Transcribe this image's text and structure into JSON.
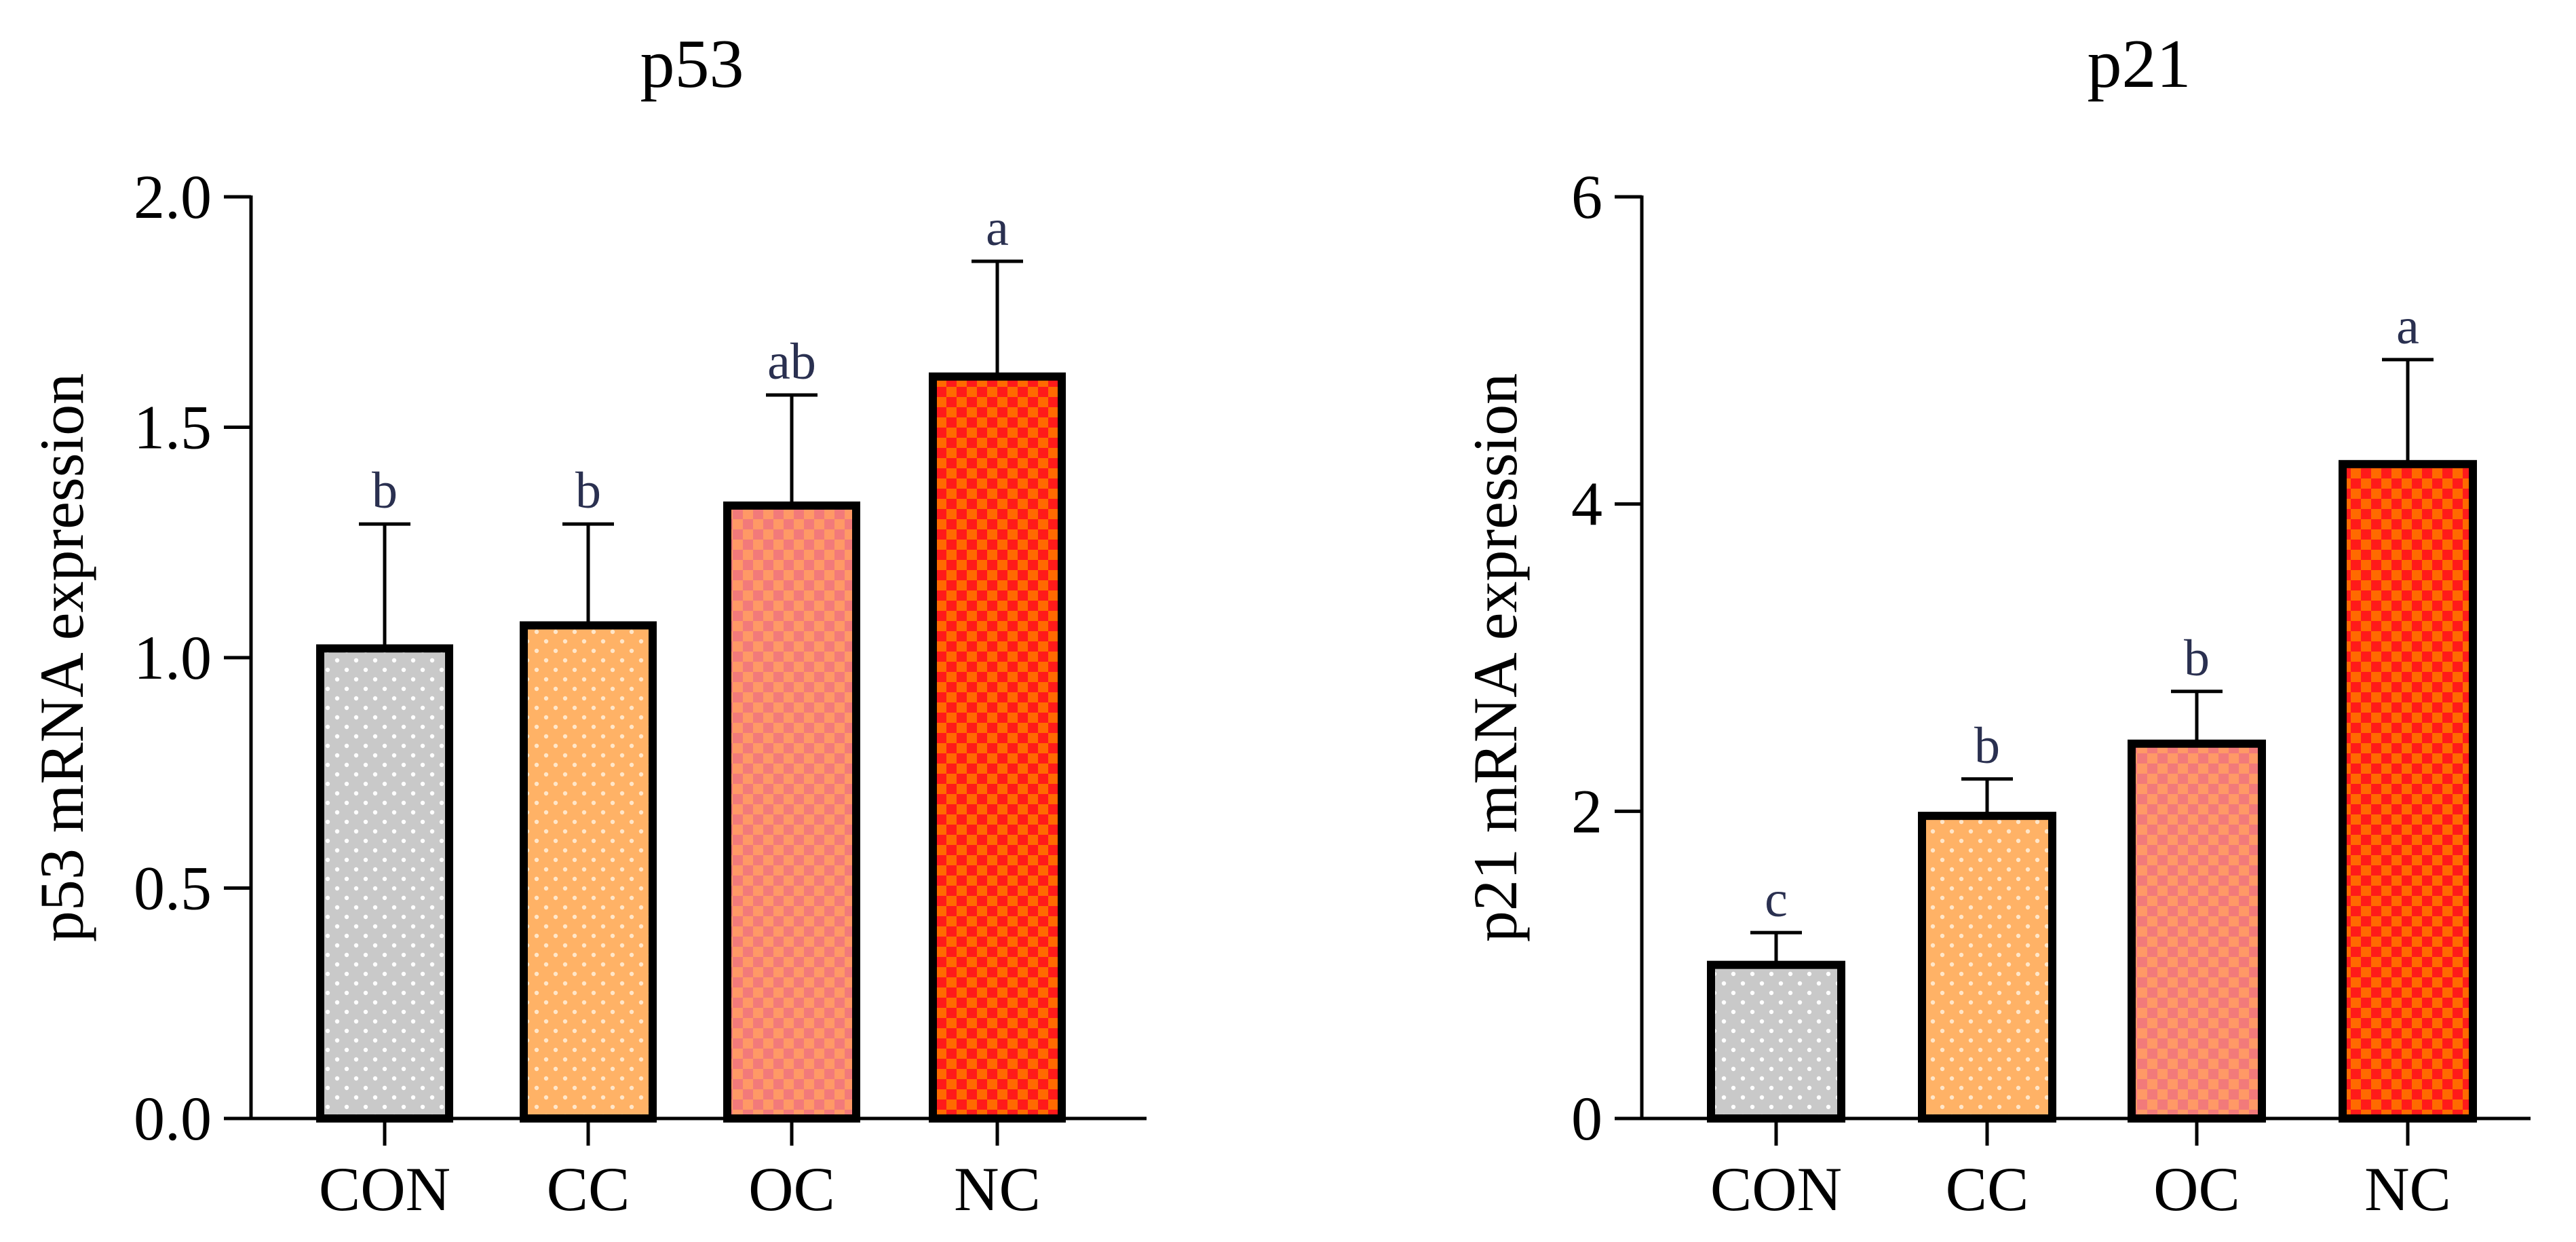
{
  "chart_data": [
    {
      "type": "bar",
      "title": "p53",
      "ylabel": "p53 mRNA expression",
      "xlabel": "",
      "categories": [
        "CON",
        "CC",
        "OC",
        "NC"
      ],
      "values": [
        1.02,
        1.07,
        1.33,
        1.61
      ],
      "error_upper": [
        0.27,
        0.22,
        0.24,
        0.25
      ],
      "significance": [
        "b",
        "b",
        "ab",
        "a"
      ],
      "ylim": [
        0,
        2.0
      ],
      "yticks": [
        0.0,
        0.5,
        1.0,
        1.5,
        2.0
      ],
      "ytick_labels": [
        "0.0",
        "0.5",
        "1.0",
        "1.5",
        "2.0"
      ]
    },
    {
      "type": "bar",
      "title": "p21",
      "ylabel": "p21 mRNA expression",
      "xlabel": "",
      "categories": [
        "CON",
        "CC",
        "OC",
        "NC"
      ],
      "values": [
        1.0,
        1.97,
        2.44,
        4.26
      ],
      "error_upper": [
        0.21,
        0.24,
        0.34,
        0.68
      ],
      "significance": [
        "c",
        "b",
        "b",
        "a"
      ],
      "ylim": [
        0,
        6
      ],
      "yticks": [
        0,
        2,
        4,
        6
      ],
      "ytick_labels": [
        "0",
        "2",
        "4",
        "6"
      ]
    }
  ],
  "bar_styles": [
    {
      "fill": "#c9c9c9",
      "pattern": "dots",
      "pattern_color": "#ffffff"
    },
    {
      "fill": "#ffb266",
      "pattern": "dots",
      "pattern_color": "#ffe6c9"
    },
    {
      "fill": "#ff9966",
      "pattern": "checker",
      "pattern_color": "#f27a7a"
    },
    {
      "fill": "#ff6a00",
      "pattern": "checker",
      "pattern_color": "#ff1a1a"
    }
  ]
}
